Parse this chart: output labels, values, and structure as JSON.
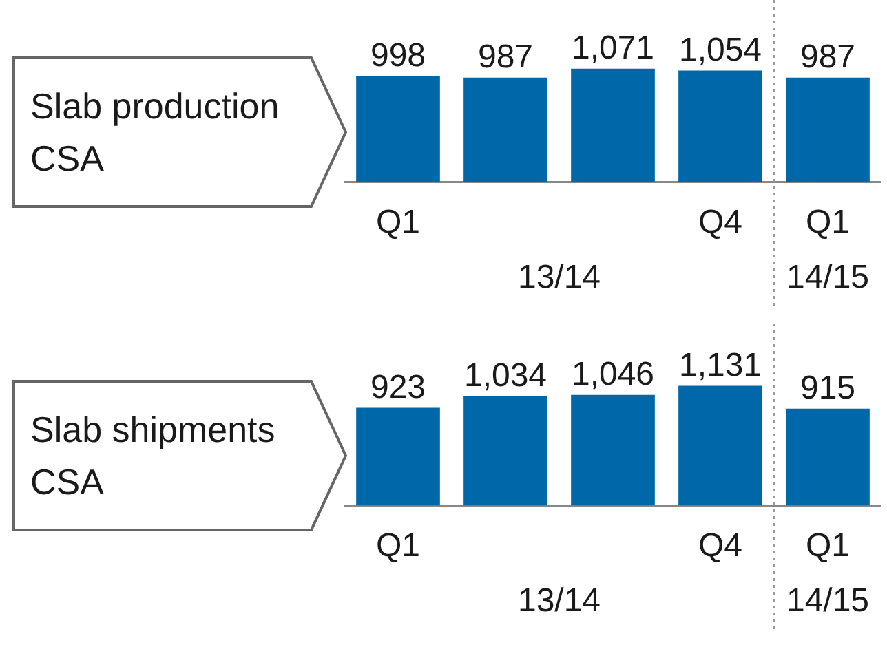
{
  "chart_data": [
    {
      "type": "bar",
      "title": "Slab production\nCSA",
      "categories": [
        "Q1",
        null,
        null,
        "Q4",
        "Q1"
      ],
      "values": [
        998,
        987,
        1071,
        1054,
        987
      ],
      "value_labels": [
        "998",
        "987",
        "1,071",
        "1,054",
        "987"
      ],
      "color": "#0068a8",
      "annotations": [
        "13/14",
        "14/15"
      ]
    },
    {
      "type": "bar",
      "title": "Slab shipments\nCSA",
      "categories": [
        "Q1",
        null,
        null,
        "Q4",
        "Q1"
      ],
      "values": [
        923,
        1034,
        1046,
        1131,
        915
      ],
      "value_labels": [
        "923",
        "1,034",
        "1,046",
        "1,131",
        "915"
      ],
      "color": "#0068a8",
      "annotations": [
        "13/14",
        "14/15"
      ]
    }
  ]
}
